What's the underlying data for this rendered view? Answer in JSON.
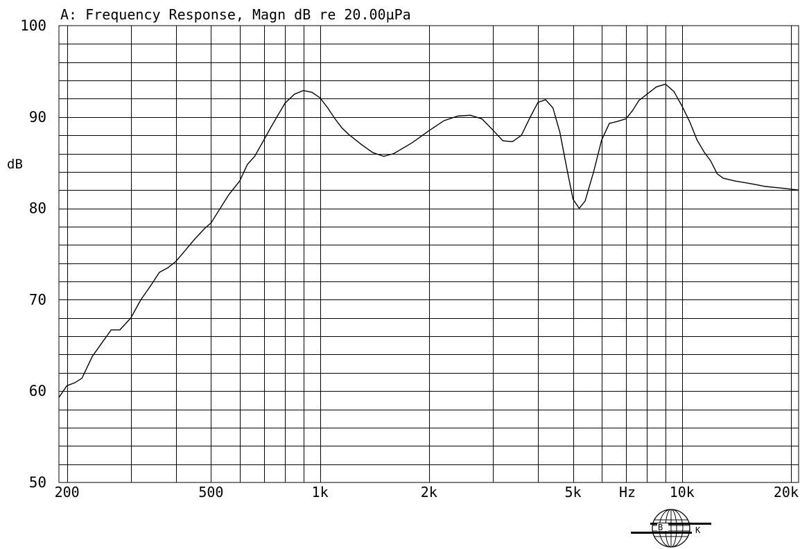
{
  "chart_data": {
    "type": "line",
    "title": "A: Frequency Response, Magn dB re 20.00µPa",
    "xlabel": "Hz",
    "ylabel": "dB",
    "xscale": "log",
    "xlim": [
      190,
      21000
    ],
    "ylim": [
      50,
      100
    ],
    "grid": true,
    "x_ticks": [
      {
        "value": 200,
        "label": "200"
      },
      {
        "value": 500,
        "label": "500"
      },
      {
        "value": 1000,
        "label": "1k"
      },
      {
        "value": 2000,
        "label": "2k"
      },
      {
        "value": 5000,
        "label": "5k"
      },
      {
        "value": 10000,
        "label": "10k"
      },
      {
        "value": 20000,
        "label": "20k"
      }
    ],
    "y_ticks": [
      {
        "value": 100,
        "label": "100"
      },
      {
        "value": 90,
        "label": "90"
      },
      {
        "value": 80,
        "label": "80"
      },
      {
        "value": 70,
        "label": "70"
      },
      {
        "value": 60,
        "label": "60"
      },
      {
        "value": 50,
        "label": "50"
      }
    ],
    "series": [
      {
        "x": [
          190,
          200,
          210,
          220,
          235,
          250,
          265,
          280,
          300,
          320,
          340,
          360,
          380,
          400,
          420,
          450,
          480,
          500,
          530,
          560,
          600,
          630,
          660,
          700,
          730,
          760,
          800,
          850,
          900,
          950,
          1000,
          1050,
          1100,
          1150,
          1200,
          1300,
          1400,
          1500,
          1600,
          1800,
          2000,
          2200,
          2400,
          2600,
          2800,
          3000,
          3200,
          3400,
          3600,
          3800,
          4000,
          4200,
          4400,
          4600,
          4800,
          5000,
          5200,
          5400,
          5700,
          6000,
          6300,
          6600,
          7000,
          7300,
          7600,
          8000,
          8500,
          9000,
          9500,
          10000,
          10500,
          11000,
          11500,
          12000,
          12500,
          13000,
          14000,
          15000,
          16000,
          17000,
          18000,
          19000,
          20000,
          21000
        ],
        "y": [
          59.3,
          60.6,
          60.9,
          61.4,
          63.8,
          65.3,
          66.7,
          66.7,
          68.0,
          70.0,
          71.5,
          73.0,
          73.5,
          74.2,
          75.2,
          76.6,
          77.8,
          78.4,
          80.0,
          81.5,
          83.0,
          84.8,
          85.7,
          87.5,
          88.8,
          90.0,
          91.5,
          92.5,
          92.9,
          92.7,
          92.1,
          91.0,
          89.8,
          88.8,
          88.1,
          87.0,
          86.1,
          85.7,
          86.0,
          87.2,
          88.5,
          89.6,
          90.1,
          90.2,
          89.8,
          88.6,
          87.4,
          87.3,
          88.0,
          89.9,
          91.6,
          91.9,
          91.0,
          88.3,
          84.5,
          81.0,
          80.0,
          80.8,
          84.0,
          87.5,
          89.3,
          89.5,
          89.8,
          90.7,
          91.8,
          92.5,
          93.3,
          93.6,
          92.8,
          91.2,
          89.5,
          87.5,
          86.2,
          85.2,
          83.8,
          83.3,
          83.0,
          82.8,
          82.6,
          82.4,
          82.3,
          82.2,
          82.1,
          82.0
        ]
      }
    ]
  },
  "logo": {
    "letters": [
      "B",
      "K"
    ]
  }
}
